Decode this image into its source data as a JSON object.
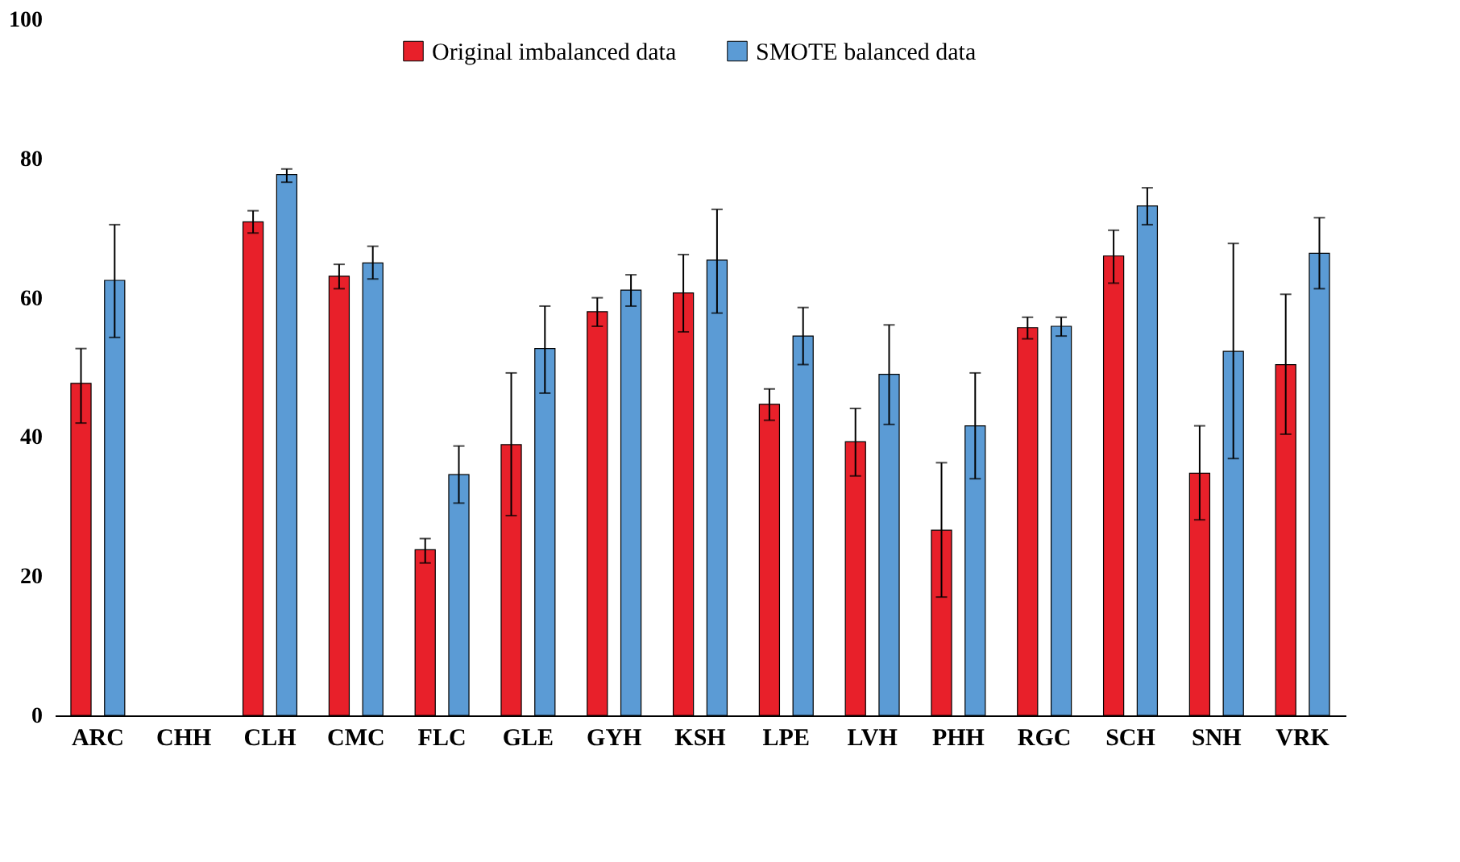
{
  "chart_data": {
    "type": "bar",
    "categories": [
      "ARC",
      "CHH",
      "CLH",
      "CMC",
      "FLC",
      "GLE",
      "GYH",
      "KSH",
      "LPE",
      "LVH",
      "PHH",
      "RGC",
      "SCH",
      "SNH",
      "VRK"
    ],
    "series": [
      {
        "name": "Original imbalanced data",
        "color": "#e8202a",
        "values": [
          47.7,
          0,
          70.9,
          63.1,
          23.8,
          38.9,
          58.0,
          60.7,
          44.7,
          39.3,
          26.6,
          55.7,
          66.0,
          34.8,
          50.4
        ],
        "errors": [
          [
            42.0,
            52.7
          ],
          null,
          [
            69.3,
            72.5
          ],
          [
            61.3,
            64.8
          ],
          [
            21.9,
            25.4
          ],
          [
            28.7,
            49.2
          ],
          [
            55.9,
            60.0
          ],
          [
            55.1,
            66.2
          ],
          [
            42.4,
            46.9
          ],
          [
            34.4,
            44.1
          ],
          [
            17.0,
            36.3
          ],
          [
            54.1,
            57.2
          ],
          [
            62.1,
            69.7
          ],
          [
            28.1,
            41.6
          ],
          [
            40.4,
            60.5
          ]
        ]
      },
      {
        "name": "SMOTE balanced data",
        "color": "#5b9bd5",
        "values": [
          62.5,
          0,
          77.7,
          65.0,
          34.6,
          52.7,
          61.1,
          65.4,
          54.5,
          49.0,
          41.6,
          55.9,
          73.2,
          52.3,
          66.4
        ],
        "errors": [
          [
            54.3,
            70.5
          ],
          null,
          [
            76.6,
            78.5
          ],
          [
            62.7,
            67.4
          ],
          [
            30.5,
            38.7
          ],
          [
            46.3,
            58.8
          ],
          [
            58.8,
            63.3
          ],
          [
            57.8,
            72.7
          ],
          [
            50.4,
            58.6
          ],
          [
            41.8,
            56.1
          ],
          [
            34.0,
            49.2
          ],
          [
            54.5,
            57.2
          ],
          [
            70.5,
            75.8
          ],
          [
            36.9,
            67.8
          ],
          [
            61.3,
            71.5
          ]
        ]
      }
    ],
    "ylim": [
      0,
      100
    ],
    "yticks": [
      0,
      20,
      40,
      60,
      80,
      100
    ],
    "grid": false,
    "legend": "top"
  }
}
